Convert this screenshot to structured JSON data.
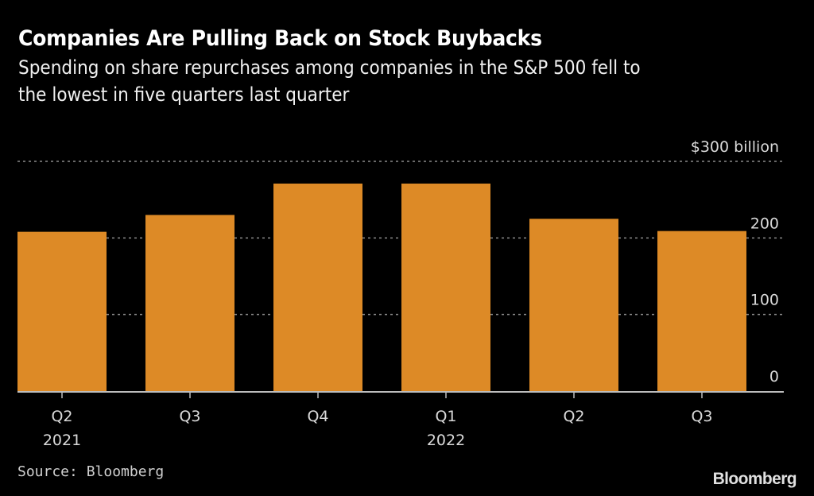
{
  "chart_data": {
    "type": "bar",
    "title": "Companies Are Pulling Back on Stock Buybacks",
    "subtitle_lines": [
      "Spending on share repurchases among companies in the S&P 500 fell to",
      "the lowest in five quarters last quarter"
    ],
    "categories": [
      "Q2",
      "Q3",
      "Q4",
      "Q1",
      "Q2",
      "Q3"
    ],
    "category_sublabels": [
      "2021",
      "",
      "",
      "2022",
      "",
      ""
    ],
    "values": [
      208,
      230,
      271,
      271,
      225,
      209
    ],
    "series_name": "Share repurchases",
    "unit": "$ billion",
    "xlabel": "",
    "ylabel": "",
    "ylim": [
      0,
      300
    ],
    "yticks": [
      0,
      100,
      200,
      300
    ],
    "ytick_labels": [
      "0",
      "100",
      "200",
      "$300 billion"
    ],
    "grid": true,
    "bar_color": "#DD8A26",
    "source": "Source: Bloomberg",
    "logo": "Bloomberg"
  }
}
